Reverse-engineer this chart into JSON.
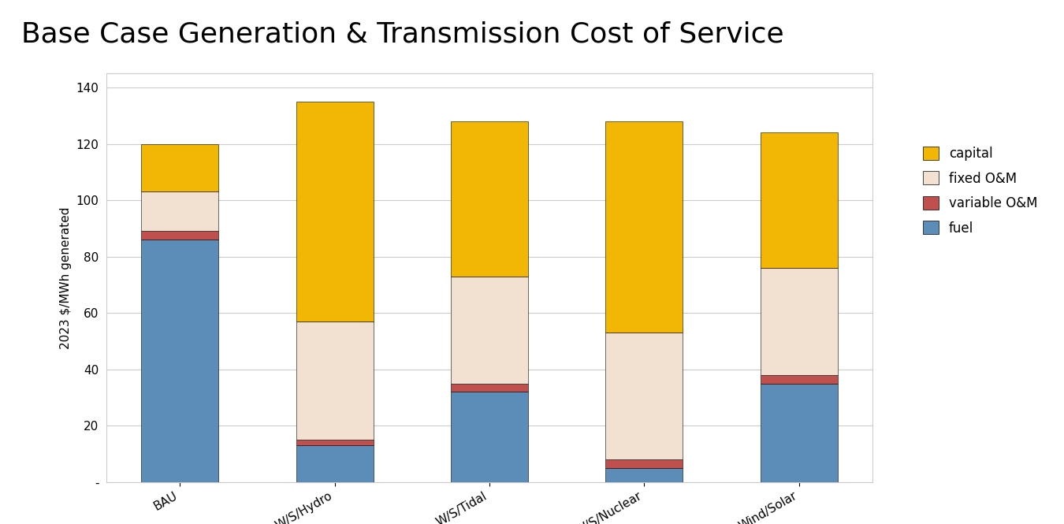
{
  "title": "Base Case Generation & Transmission Cost of Service",
  "categories": [
    "BAU",
    "W/S/Hydro",
    "W/S/Tidal",
    "W/S/Nuclear",
    "Wind/Solar"
  ],
  "fuel": [
    86,
    13,
    32,
    5,
    35
  ],
  "variable_om": [
    3,
    2,
    3,
    3,
    3
  ],
  "fixed_om": [
    14,
    42,
    38,
    45,
    38
  ],
  "capital": [
    17,
    78,
    55,
    75,
    48
  ],
  "colors": {
    "fuel": "#5B8DB8",
    "variable_om": "#C0504D",
    "fixed_om": "#F2E0D0",
    "capital": "#F2B705"
  },
  "ylabel": "2023 $/MWh generated",
  "ylim": [
    0,
    145
  ],
  "yticks": [
    0,
    20,
    40,
    60,
    80,
    100,
    120,
    140
  ],
  "ytick_labels": [
    "-",
    "20",
    "40",
    "60",
    "80",
    "100",
    "120",
    "140"
  ],
  "background_color": "#FFFFFF",
  "plot_bg_color": "#FFFFFF",
  "bar_width": 0.5,
  "title_fontsize": 26,
  "axis_fontsize": 11,
  "legend_fontsize": 12
}
